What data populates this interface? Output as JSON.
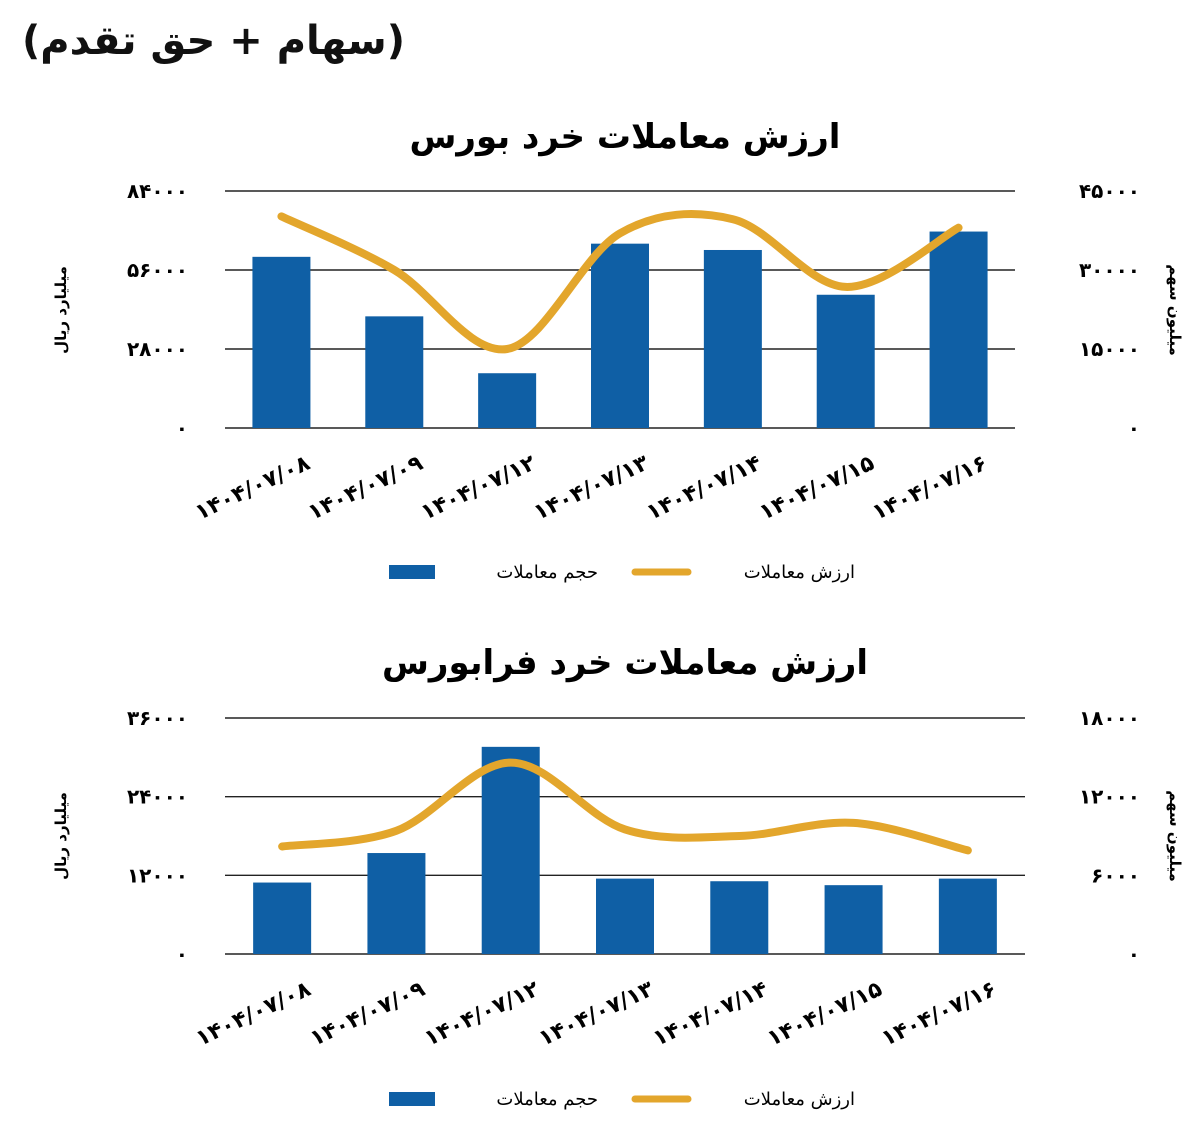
{
  "header": {
    "title": "(سهام + حق تقدم)"
  },
  "colors": {
    "bar": "#0f5fa5",
    "line": "#e3a62c",
    "grid": "#222222"
  },
  "chart_data": [
    {
      "type": "bar",
      "title": "ارزش معاملات خرد بورس",
      "categories": [
        "۱۴۰۴/۰۷/۰۸",
        "۱۴۰۴/۰۷/۰۹",
        "۱۴۰۴/۰۷/۱۲",
        "۱۴۰۴/۰۷/۱۳",
        "۱۴۰۴/۰۷/۱۴",
        "۱۴۰۴/۰۷/۱۵",
        "۱۴۰۴/۰۷/۱۶"
      ],
      "ylabel": "میلیارد ریال",
      "ylabel_right": "میلیون سهم",
      "ylim": [
        0,
        84000
      ],
      "yticks": [
        0,
        28000,
        56000,
        84000
      ],
      "ytick_labels": [
        "۰",
        "۲۸۰۰۰",
        "۵۶۰۰۰",
        "۸۴۰۰۰"
      ],
      "ylim_right": [
        0,
        45000
      ],
      "yticks_right": [
        0,
        15000,
        30000,
        45000
      ],
      "ytick_labels_right": [
        "۰",
        "۱۵۰۰۰",
        "۳۰۰۰۰",
        "۴۵۰۰۰"
      ],
      "grid": true,
      "legend_position": "bottom",
      "series": [
        {
          "name": "حجم معاملات",
          "type": "bar",
          "axis": "right",
          "values": [
            32500,
            21200,
            10400,
            35000,
            33800,
            25300,
            37300
          ]
        },
        {
          "name": "ارزش معاملات",
          "type": "line",
          "axis": "left",
          "values": [
            75000,
            56000,
            28000,
            69000,
            74000,
            50000,
            71000
          ]
        }
      ]
    },
    {
      "type": "bar",
      "title": "ارزش معاملات خرد فرابورس",
      "categories": [
        "۱۴۰۴/۰۷/۰۸",
        "۱۴۰۴/۰۷/۰۹",
        "۱۴۰۴/۰۷/۱۲",
        "۱۴۰۴/۰۷/۱۳",
        "۱۴۰۴/۰۷/۱۴",
        "۱۴۰۴/۰۷/۱۵",
        "۱۴۰۴/۰۷/۱۶"
      ],
      "ylabel": "میلیارد ریال",
      "ylabel_right": "میلیون سهم",
      "ylim": [
        0,
        36000
      ],
      "yticks": [
        0,
        12000,
        24000,
        36000
      ],
      "ytick_labels": [
        "۰",
        "۱۲۰۰۰",
        "۲۴۰۰۰",
        "۳۶۰۰۰"
      ],
      "ylim_right": [
        0,
        18000
      ],
      "yticks_right": [
        0,
        6000,
        12000,
        18000
      ],
      "ytick_labels_right": [
        "۰",
        "۶۰۰۰",
        "۱۲۰۰۰",
        "۱۸۰۰۰"
      ],
      "grid": true,
      "legend_position": "bottom",
      "series": [
        {
          "name": "حجم معاملات",
          "type": "bar",
          "axis": "left",
          "values": [
            10900,
            15400,
            31600,
            11500,
            11100,
            10500,
            11500
          ]
        },
        {
          "name": "ارزش معاملات",
          "type": "line",
          "axis": "right",
          "values": [
            8200,
            9400,
            14600,
            9500,
            9000,
            10000,
            7900
          ]
        }
      ]
    }
  ]
}
